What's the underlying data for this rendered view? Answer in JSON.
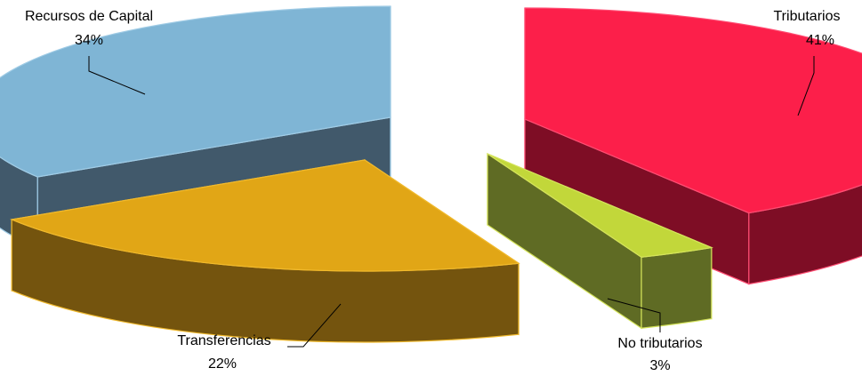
{
  "chart_data": {
    "type": "pie",
    "style": "3d-exploded",
    "categories": [
      "Tributarios",
      "No tributarios",
      "Transferencias",
      "Recursos de Capital"
    ],
    "values": [
      41,
      3,
      22,
      34
    ],
    "unit": "%",
    "labels": [
      {
        "name": "Tributarios",
        "value_text": "41%"
      },
      {
        "name": "No tributarios",
        "value_text": "3%"
      },
      {
        "name": "Transferencias",
        "value_text": "22%"
      },
      {
        "name": "Recursos de Capital",
        "value_text": "34%"
      }
    ],
    "colors": {
      "Tributarios": {
        "top": "#fc1f4a",
        "side": "#7e0d25",
        "edge": "#ff4d73"
      },
      "No tributarios": {
        "top": "#c2d73a",
        "side": "#5f6b24",
        "edge": "#d4e35a"
      },
      "Transferencias": {
        "top": "#e1a616",
        "side": "#74540e",
        "edge": "#f0b92c"
      },
      "Recursos de Capital": {
        "top": "#7fb5d5",
        "side": "#41596b",
        "edge": "#9fcbe5"
      }
    },
    "legend": "none"
  }
}
